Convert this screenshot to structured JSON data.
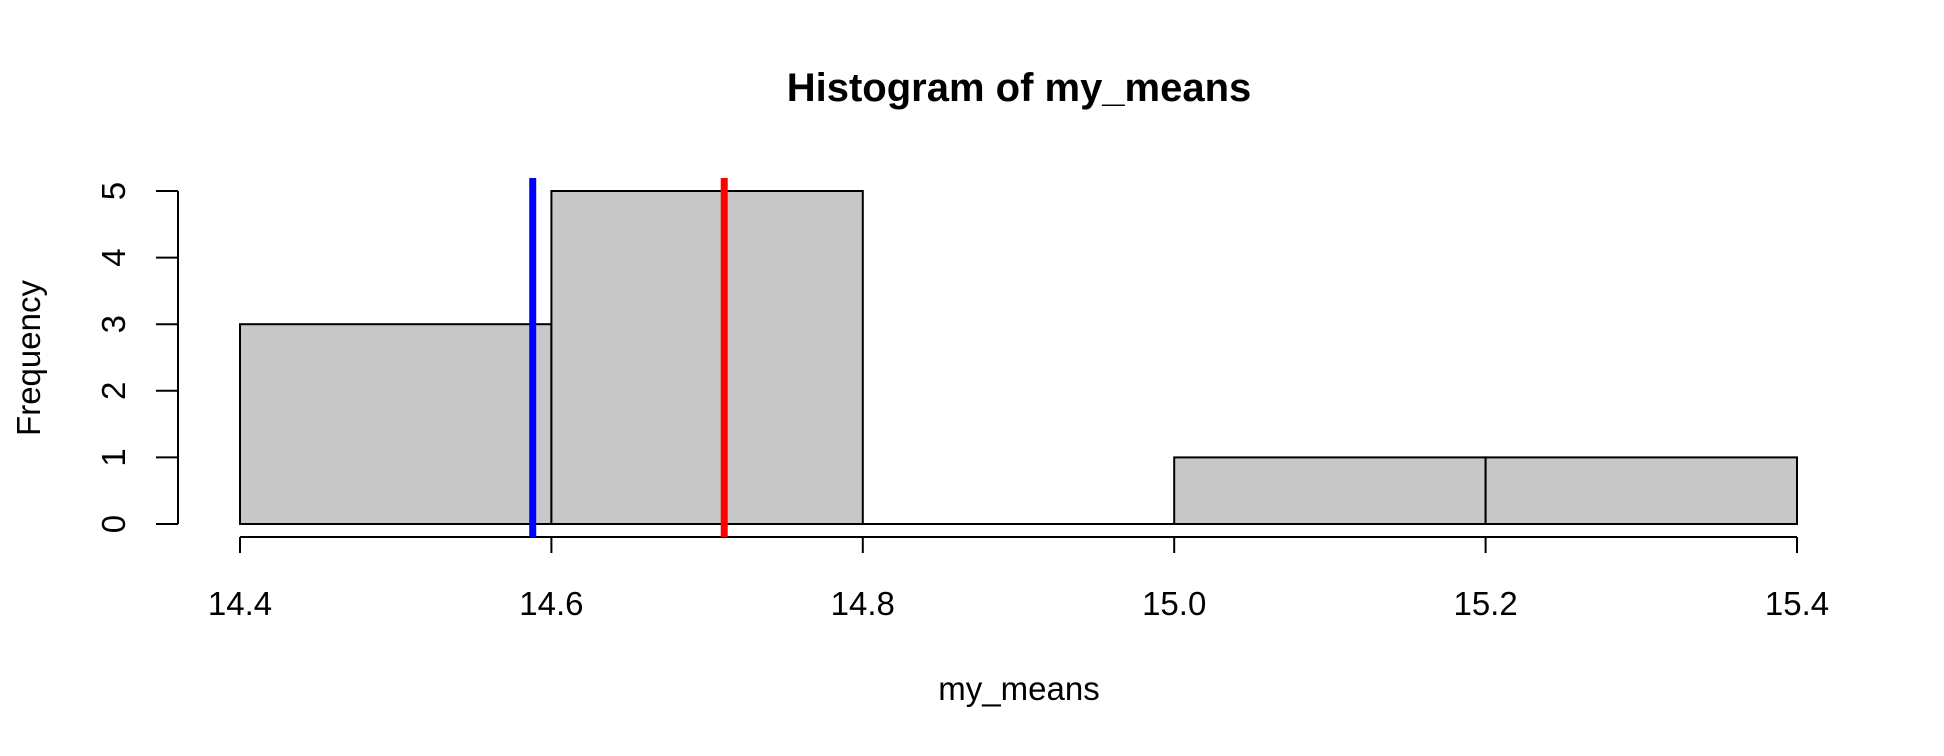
{
  "chart_data": {
    "type": "bar",
    "title": "Histogram of my_means",
    "xlabel": "my_means",
    "ylabel": "Frequency",
    "bins": [
      {
        "from": 14.4,
        "to": 14.6,
        "count": 3
      },
      {
        "from": 14.6,
        "to": 14.8,
        "count": 5
      },
      {
        "from": 14.8,
        "to": 15.0,
        "count": 0
      },
      {
        "from": 15.0,
        "to": 15.2,
        "count": 1
      },
      {
        "from": 15.2,
        "to": 15.4,
        "count": 1
      }
    ],
    "xlim": [
      14.4,
      15.4
    ],
    "ylim": [
      0,
      5
    ],
    "x_ticks": [
      "14.4",
      "14.6",
      "14.8",
      "15.0",
      "15.2",
      "15.4"
    ],
    "y_ticks": [
      "0",
      "1",
      "2",
      "3",
      "4",
      "5"
    ],
    "bar_color": "#c8c8c8",
    "vertical_lines": [
      {
        "x": 14.588,
        "color": "#0000ff"
      },
      {
        "x": 14.711,
        "color": "#ff0000"
      }
    ],
    "grid": false
  }
}
